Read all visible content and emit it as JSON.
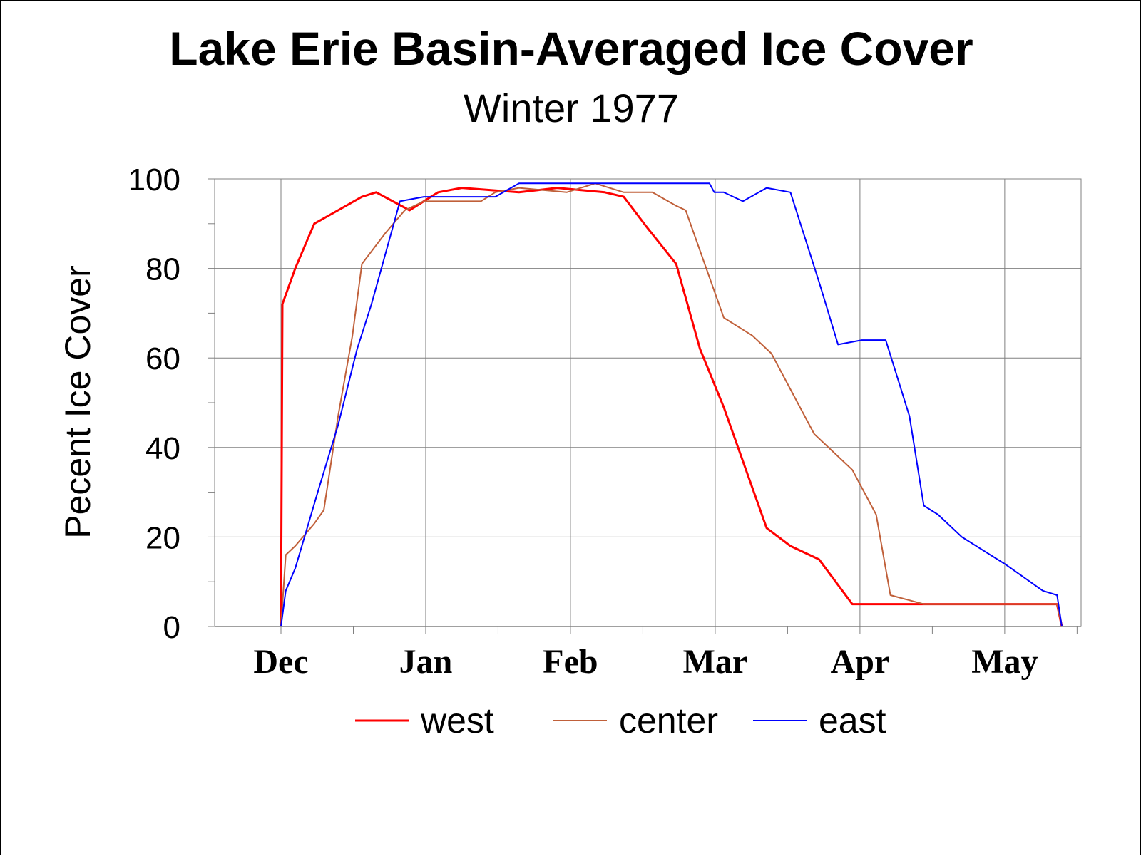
{
  "chart_data": {
    "type": "line",
    "title": "Lake Erie Basin-Averaged Ice Cover",
    "subtitle": "Winter 1977",
    "xlabel": "",
    "ylabel": "Pecent Ice Cover",
    "ylim": [
      0,
      100
    ],
    "yticks": [
      0,
      20,
      40,
      60,
      80,
      100
    ],
    "x_month_labels": [
      "Dec",
      "Jan",
      "Feb",
      "Mar",
      "Apr",
      "May"
    ],
    "grid": true,
    "legend_position": "bottom",
    "series": [
      {
        "name": "west",
        "color": "#ff0000",
        "points": [
          [
            0,
            0
          ],
          [
            0.3,
            72
          ],
          [
            3,
            80
          ],
          [
            7,
            90
          ],
          [
            12,
            93
          ],
          [
            17,
            96
          ],
          [
            20,
            97
          ],
          [
            27,
            93
          ],
          [
            33,
            97
          ],
          [
            38,
            98
          ],
          [
            50,
            97
          ],
          [
            58,
            98
          ],
          [
            68,
            97
          ],
          [
            72,
            96
          ],
          [
            77,
            89
          ],
          [
            83,
            81
          ],
          [
            88,
            62
          ],
          [
            93,
            49
          ],
          [
            102,
            22
          ],
          [
            107,
            18
          ],
          [
            113,
            15
          ],
          [
            120,
            5
          ],
          [
            127,
            5
          ],
          [
            140,
            5
          ],
          [
            155,
            5
          ],
          [
            163,
            5
          ],
          [
            164,
            0
          ]
        ]
      },
      {
        "name": "center",
        "color": "#c0603a",
        "points": [
          [
            0,
            0
          ],
          [
            1,
            16
          ],
          [
            3,
            18
          ],
          [
            7,
            23
          ],
          [
            9,
            26
          ],
          [
            12,
            47
          ],
          [
            15,
            65
          ],
          [
            17,
            81
          ],
          [
            22,
            88
          ],
          [
            26,
            93
          ],
          [
            30,
            95
          ],
          [
            33,
            95
          ],
          [
            38,
            95
          ],
          [
            42,
            95
          ],
          [
            45,
            97
          ],
          [
            50,
            98
          ],
          [
            60,
            97
          ],
          [
            66,
            99
          ],
          [
            72,
            97
          ],
          [
            78,
            97
          ],
          [
            83,
            94
          ],
          [
            85,
            93
          ],
          [
            93,
            69
          ],
          [
            99,
            65
          ],
          [
            103,
            61
          ],
          [
            112,
            43
          ],
          [
            120,
            35
          ],
          [
            125,
            25
          ],
          [
            128,
            7
          ],
          [
            135,
            5
          ],
          [
            150,
            5
          ],
          [
            163,
            5
          ],
          [
            164,
            0
          ]
        ]
      },
      {
        "name": "east",
        "color": "#0000ff",
        "points": [
          [
            0,
            0
          ],
          [
            1,
            8
          ],
          [
            3,
            13
          ],
          [
            8,
            31
          ],
          [
            12,
            45
          ],
          [
            16,
            62
          ],
          [
            19,
            72
          ],
          [
            25,
            95
          ],
          [
            30,
            96
          ],
          [
            35,
            96
          ],
          [
            40,
            96
          ],
          [
            45,
            96
          ],
          [
            50,
            99
          ],
          [
            60,
            99
          ],
          [
            70,
            99
          ],
          [
            80,
            99
          ],
          [
            90,
            99
          ],
          [
            91,
            97
          ],
          [
            93,
            97
          ],
          [
            97,
            95
          ],
          [
            102,
            98
          ],
          [
            107,
            97
          ],
          [
            113,
            77
          ],
          [
            117,
            63
          ],
          [
            122,
            64
          ],
          [
            127,
            64
          ],
          [
            132,
            47
          ],
          [
            135,
            27
          ],
          [
            138,
            25
          ],
          [
            143,
            20
          ],
          [
            152,
            14
          ],
          [
            160,
            8
          ],
          [
            163,
            7
          ],
          [
            164,
            0
          ]
        ]
      }
    ]
  }
}
